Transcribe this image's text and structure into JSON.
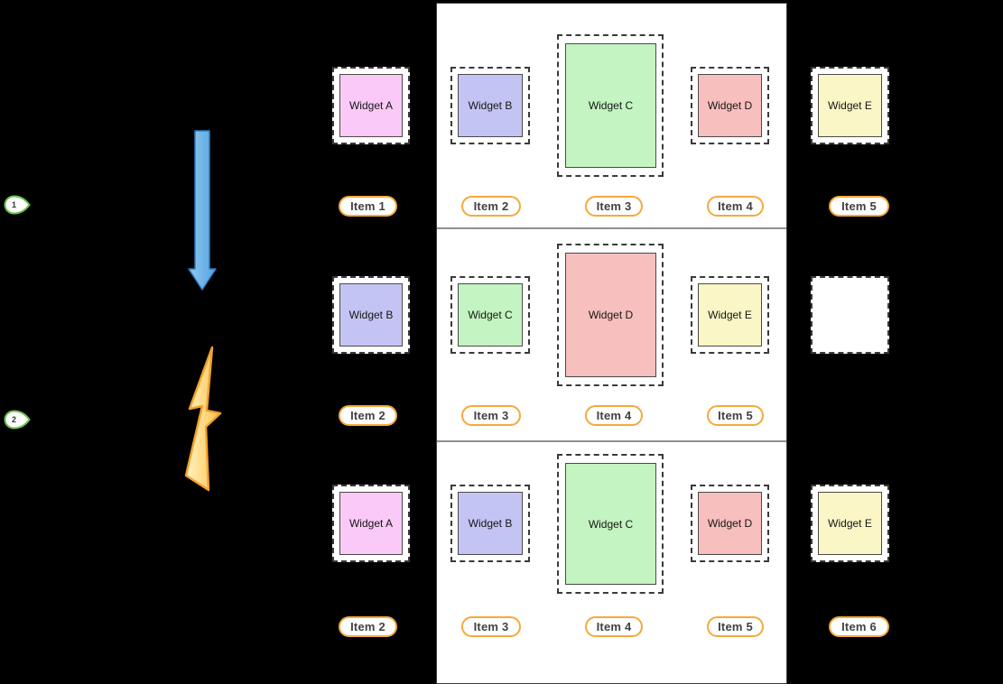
{
  "diagram": {
    "background": "#000000",
    "panel": {
      "fill": "#ffffff",
      "border_color": "#3a3a3a",
      "divider_color": "#909090"
    },
    "markers": [
      {
        "label": "1"
      },
      {
        "label": "2"
      }
    ],
    "marker_style": {
      "border": "#6abf4b",
      "fill": "#ffffff"
    },
    "arrow_icon": {
      "name": "down-arrow",
      "fill": "#6cb4e9",
      "fill_light": "#8fc9f1",
      "fill_dark": "#55a3e0",
      "border": "#2e7cbf"
    },
    "lightning_icon": {
      "name": "lightning-bolt",
      "fill_light": "#fff3c3",
      "fill_dark": "#ffc24a",
      "border": "#f0a330"
    },
    "item_pill_style": {
      "border": "#f5a93b",
      "fill": "#ffffff",
      "text": "#414141"
    },
    "widget_style": {
      "dashed_border": "#3a3a3a",
      "inner_border": "#4a4a4a",
      "text": "#151515"
    },
    "rows": [
      {
        "slots": [
          {
            "widget_label": "Widget A",
            "fill": "#fac9f7",
            "tall": false,
            "empty": false,
            "item_label": "Item 1"
          },
          {
            "widget_label": "Widget B",
            "fill": "#c4c4f4",
            "tall": false,
            "empty": false,
            "item_label": "Item 2"
          },
          {
            "widget_label": "Widget C",
            "fill": "#c3f4c1",
            "tall": true,
            "empty": false,
            "item_label": "Item 3"
          },
          {
            "widget_label": "Widget D",
            "fill": "#f7bfbd",
            "tall": false,
            "empty": false,
            "item_label": "Item 4"
          },
          {
            "widget_label": "Widget E",
            "fill": "#faf6c6",
            "tall": false,
            "empty": false,
            "item_label": "Item 5"
          }
        ]
      },
      {
        "slots": [
          {
            "widget_label": "Widget B",
            "fill": "#c4c4f4",
            "tall": false,
            "empty": false,
            "item_label": "Item 2"
          },
          {
            "widget_label": "Widget C",
            "fill": "#c3f4c1",
            "tall": false,
            "empty": false,
            "item_label": "Item 3"
          },
          {
            "widget_label": "Widget D",
            "fill": "#f7bfbd",
            "tall": true,
            "empty": false,
            "item_label": "Item 4"
          },
          {
            "widget_label": "Widget E",
            "fill": "#faf6c6",
            "tall": false,
            "empty": false,
            "item_label": "Item 5"
          },
          {
            "widget_label": "",
            "fill": "#ffffff",
            "tall": false,
            "empty": true,
            "item_label": ""
          }
        ]
      },
      {
        "slots": [
          {
            "widget_label": "Widget A",
            "fill": "#fac9f7",
            "tall": false,
            "empty": false,
            "item_label": "Item 2"
          },
          {
            "widget_label": "Widget B",
            "fill": "#c4c4f4",
            "tall": false,
            "empty": false,
            "item_label": "Item 3"
          },
          {
            "widget_label": "Widget C",
            "fill": "#c3f4c1",
            "tall": true,
            "empty": false,
            "item_label": "Item 4"
          },
          {
            "widget_label": "Widget D",
            "fill": "#f7bfbd",
            "tall": false,
            "empty": false,
            "item_label": "Item 5"
          },
          {
            "widget_label": "Widget E",
            "fill": "#faf6c6",
            "tall": false,
            "empty": false,
            "item_label": "Item 6"
          }
        ]
      }
    ]
  }
}
